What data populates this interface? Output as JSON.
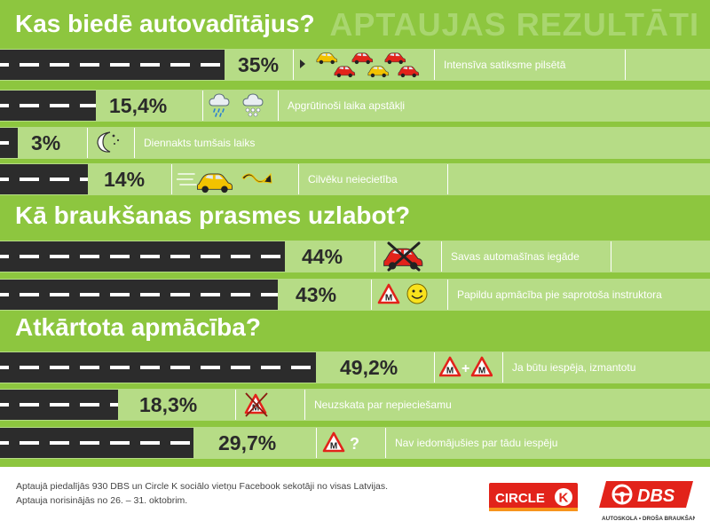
{
  "sections": [
    {
      "heading": "Kas biedē autovadītājus?"
    },
    {
      "heading": "Kā braukšanas prasmes uzlabot?"
    },
    {
      "heading": "Atkārtota apmācība?"
    }
  ],
  "banner": "APTAUJAS REZULTĀTI",
  "rows": [
    {
      "value": "35%",
      "label": "Intensīva satiksme pilsētā",
      "icon": "traffic-cars-icon"
    },
    {
      "value": "15,4%",
      "label": "Apgrūtinoši laika apstākļi",
      "icon": "rain-snow-cloud-icon"
    },
    {
      "value": "3%",
      "label": "Diennakts tumšais laiks",
      "icon": "moon-stars-icon"
    },
    {
      "value": "14%",
      "label": "Cilvēku neiecietība",
      "icon": "speeding-car-icon"
    },
    {
      "value": "44%",
      "label": "Savas automašīnas iegāde",
      "icon": "crossed-car-icon"
    },
    {
      "value": "43%",
      "label": "Papildu apmācība pie saprotoša instruktora",
      "icon": "learner-smiley-icon"
    },
    {
      "value": "49,2%",
      "label": "Ja būtu iespēja, izmantotu",
      "icon": "learner-plus-learner-icon"
    },
    {
      "value": "18,3%",
      "label": "Neuzskata par nepieciešamu",
      "icon": "crossed-learner-icon"
    },
    {
      "value": "29,7%",
      "label": "Nav iedomājušies par tādu iespēju",
      "icon": "learner-question-icon"
    }
  ],
  "footer": {
    "line1": "Aptaujā piedalījās 930 DBS un Circle K sociālo vietņu Facebook sekotāji no visas Latvijas.",
    "line2": "Aptauja norisinājās no 26. – 31. oktobrim."
  },
  "logos": {
    "circlek_text": "CIRCLE K",
    "dbs_text": "DBS",
    "dbs_tagline": "AUTOSKOLA • DROŠA BRAUKŠANA"
  },
  "colors": {
    "background": "#8dc63f",
    "strip": "#b6dc86",
    "road": "#2c2c2c",
    "brand_red": "#e2231a"
  },
  "chart_data": {
    "type": "bar",
    "categories": [
      "Intensīva satiksme pilsētā",
      "Apgrūtinoši laika apstākļi",
      "Diennakts tumšais laiks",
      "Cilvēku neiecietība",
      "Savas automašīnas iegāde",
      "Papildu apmācība pie saprotoša instruktora",
      "Ja būtu iespēja, izmantotu",
      "Neuzskata par nepieciešamu",
      "Nav iedomājušies par tādu iespēju"
    ],
    "values": [
      35,
      15.4,
      3,
      14,
      44,
      43,
      49.2,
      18.3,
      29.7
    ],
    "groups": [
      {
        "title": "Kas biedē autovadītājus?",
        "values": [
          35,
          15.4,
          3,
          14
        ]
      },
      {
        "title": "Kā braukšanas prasmes uzlabot?",
        "values": [
          44,
          43
        ]
      },
      {
        "title": "Atkārtota apmācība?",
        "values": [
          49.2,
          18.3,
          29.7
        ]
      }
    ],
    "orientation": "horizontal",
    "grid": false
  }
}
